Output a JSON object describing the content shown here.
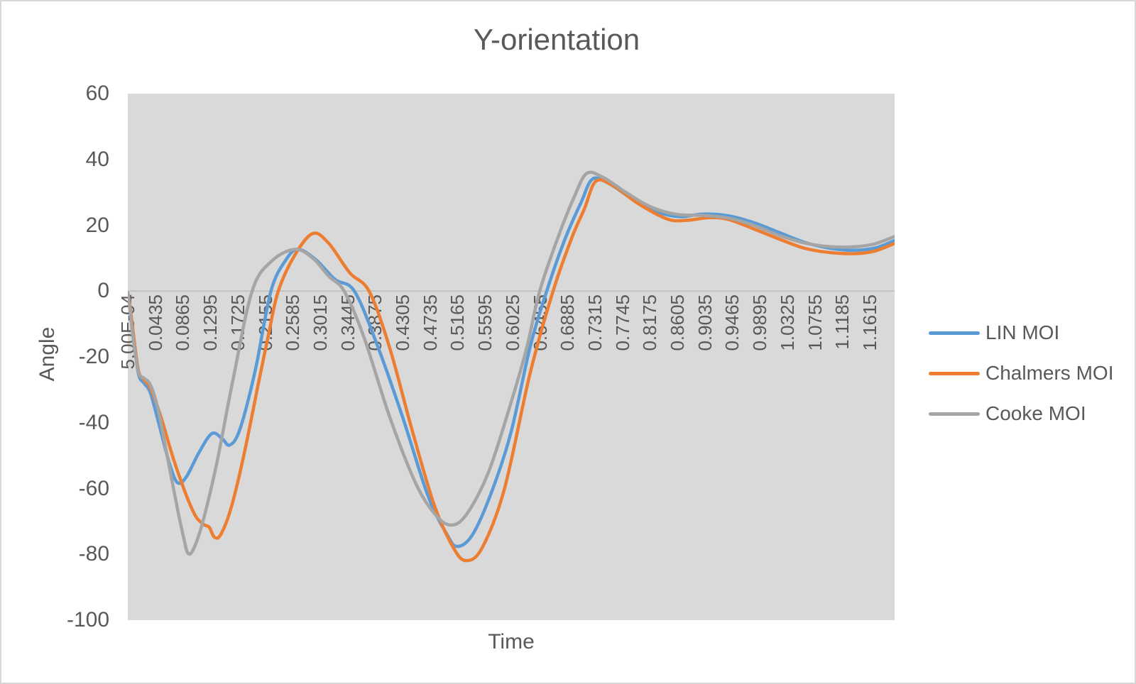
{
  "chart_data": {
    "type": "line",
    "title": "Y-orientation",
    "xlabel": "Time",
    "ylabel": "Angle",
    "ylim": [
      -100,
      60
    ],
    "yticks": [
      60,
      40,
      20,
      0,
      -20,
      -40,
      -60,
      -80,
      -100
    ],
    "x_range": [
      0.0005,
      1.2005
    ],
    "x_tick_labels": [
      "5.00E-04",
      "0.0435",
      "0.0865",
      "0.1295",
      "0.1725",
      "0.2155",
      "0.2585",
      "0.3015",
      "0.3445",
      "0.3875",
      "0.4305",
      "0.4735",
      "0.5165",
      "0.5595",
      "0.6025",
      "0.6455",
      "0.6885",
      "0.7315",
      "0.7745",
      "0.8175",
      "0.8605",
      "0.9035",
      "0.9465",
      "0.9895",
      "1.0325",
      "1.0755",
      "1.1185",
      "1.1615"
    ],
    "grid": "zero-line-only",
    "legend_position": "right",
    "plot_bg": "#d9d9d9",
    "zero_line_color": "#bcbcbc",
    "axis_text_color": "#595959",
    "series": [
      {
        "name": "LIN MOI",
        "color": "#5b9bd5",
        "points": [
          [
            0.0005,
            -0.5
          ],
          [
            0.004,
            -5
          ],
          [
            0.008,
            -12
          ],
          [
            0.017,
            -25
          ],
          [
            0.026,
            -28
          ],
          [
            0.036,
            -31
          ],
          [
            0.05,
            -41
          ],
          [
            0.065,
            -52
          ],
          [
            0.078,
            -58.2
          ],
          [
            0.092,
            -56.5
          ],
          [
            0.112,
            -49
          ],
          [
            0.132,
            -43.3
          ],
          [
            0.148,
            -44.8
          ],
          [
            0.16,
            -46.8
          ],
          [
            0.176,
            -42
          ],
          [
            0.2,
            -24
          ],
          [
            0.2245,
            0
          ],
          [
            0.248,
            9.5
          ],
          [
            0.267,
            12.7
          ],
          [
            0.295,
            9.5
          ],
          [
            0.325,
            3.5
          ],
          [
            0.355,
            0
          ],
          [
            0.39,
            -16
          ],
          [
            0.43,
            -38
          ],
          [
            0.47,
            -62
          ],
          [
            0.5,
            -74
          ],
          [
            0.516,
            -77.6
          ],
          [
            0.54,
            -74
          ],
          [
            0.57,
            -61
          ],
          [
            0.6,
            -43
          ],
          [
            0.63,
            -17
          ],
          [
            0.656,
            0
          ],
          [
            0.685,
            16
          ],
          [
            0.71,
            27
          ],
          [
            0.728,
            34.1
          ],
          [
            0.755,
            32.5
          ],
          [
            0.79,
            28
          ],
          [
            0.83,
            24
          ],
          [
            0.865,
            22.6
          ],
          [
            0.9,
            23.4
          ],
          [
            0.94,
            22.9
          ],
          [
            0.98,
            20.8
          ],
          [
            1.02,
            17.8
          ],
          [
            1.06,
            14.8
          ],
          [
            1.1,
            13.0
          ],
          [
            1.135,
            12.4
          ],
          [
            1.17,
            13.1
          ],
          [
            1.2005,
            15.4
          ]
        ]
      },
      {
        "name": "Chalmers MOI",
        "color": "#ed7d31",
        "points": [
          [
            0.0005,
            -0.5
          ],
          [
            0.004,
            -4.5
          ],
          [
            0.008,
            -11
          ],
          [
            0.017,
            -24
          ],
          [
            0.026,
            -27
          ],
          [
            0.036,
            -29.5
          ],
          [
            0.052,
            -38
          ],
          [
            0.072,
            -51
          ],
          [
            0.092,
            -62
          ],
          [
            0.107,
            -68.5
          ],
          [
            0.12,
            -71
          ],
          [
            0.128,
            -71.8
          ],
          [
            0.136,
            -74.8
          ],
          [
            0.146,
            -74
          ],
          [
            0.162,
            -66
          ],
          [
            0.182,
            -50
          ],
          [
            0.205,
            -28
          ],
          [
            0.221,
            -13
          ],
          [
            0.236,
            0
          ],
          [
            0.262,
            11
          ],
          [
            0.29,
            17.5
          ],
          [
            0.315,
            14.5
          ],
          [
            0.348,
            5.5
          ],
          [
            0.378,
            0
          ],
          [
            0.41,
            -17
          ],
          [
            0.445,
            -42
          ],
          [
            0.48,
            -65
          ],
          [
            0.51,
            -78
          ],
          [
            0.53,
            -81.9
          ],
          [
            0.555,
            -78
          ],
          [
            0.59,
            -60
          ],
          [
            0.63,
            -25
          ],
          [
            0.666,
            0
          ],
          [
            0.695,
            16
          ],
          [
            0.715,
            25
          ],
          [
            0.733,
            33.4
          ],
          [
            0.76,
            32
          ],
          [
            0.8,
            26.5
          ],
          [
            0.845,
            21.9
          ],
          [
            0.875,
            21.5
          ],
          [
            0.91,
            22.3
          ],
          [
            0.94,
            21.8
          ],
          [
            0.98,
            18.9
          ],
          [
            1.02,
            15.8
          ],
          [
            1.06,
            13.0
          ],
          [
            1.1,
            11.7
          ],
          [
            1.14,
            11.4
          ],
          [
            1.17,
            12.2
          ],
          [
            1.2005,
            14.5
          ]
        ]
      },
      {
        "name": "Cooke MOI",
        "color": "#a5a5a5",
        "points": [
          [
            0.0005,
            -0.5
          ],
          [
            0.004,
            -5.5
          ],
          [
            0.008,
            -13
          ],
          [
            0.017,
            -24.5
          ],
          [
            0.026,
            -26.5
          ],
          [
            0.036,
            -28.5
          ],
          [
            0.048,
            -36
          ],
          [
            0.063,
            -51
          ],
          [
            0.078,
            -66
          ],
          [
            0.088,
            -75
          ],
          [
            0.0945,
            -79.6
          ],
          [
            0.103,
            -78.5
          ],
          [
            0.118,
            -70
          ],
          [
            0.14,
            -52
          ],
          [
            0.165,
            -27
          ],
          [
            0.195,
            0
          ],
          [
            0.225,
            9
          ],
          [
            0.262,
            12.7
          ],
          [
            0.29,
            10
          ],
          [
            0.315,
            4.5
          ],
          [
            0.339,
            0
          ],
          [
            0.37,
            -14
          ],
          [
            0.41,
            -38
          ],
          [
            0.45,
            -58
          ],
          [
            0.48,
            -67.5
          ],
          [
            0.505,
            -71.1
          ],
          [
            0.53,
            -68
          ],
          [
            0.565,
            -55
          ],
          [
            0.6,
            -34
          ],
          [
            0.625,
            -17
          ],
          [
            0.645,
            0
          ],
          [
            0.675,
            17
          ],
          [
            0.7,
            29
          ],
          [
            0.719,
            35.8
          ],
          [
            0.745,
            34.5
          ],
          [
            0.78,
            30
          ],
          [
            0.82,
            25.5
          ],
          [
            0.86,
            23.3
          ],
          [
            0.9,
            23.0
          ],
          [
            0.94,
            22.2
          ],
          [
            0.98,
            20.0
          ],
          [
            1.02,
            16.9
          ],
          [
            1.06,
            14.6
          ],
          [
            1.1,
            13.5
          ],
          [
            1.14,
            13.5
          ],
          [
            1.17,
            14.4
          ],
          [
            1.2005,
            16.6
          ]
        ]
      }
    ]
  }
}
